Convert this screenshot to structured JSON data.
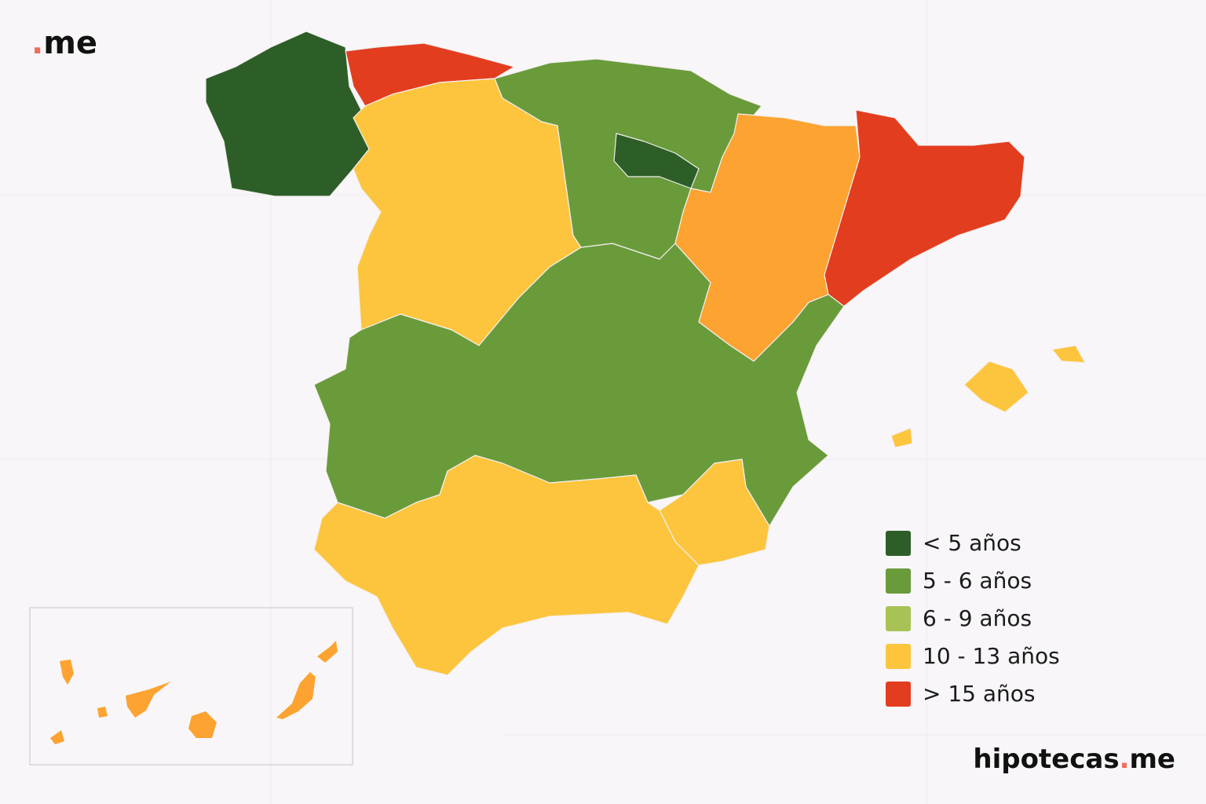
{
  "logo": {
    "dot": ".",
    "word": "me"
  },
  "legend": [
    {
      "label": "< 5 años",
      "color": "#2d5e27"
    },
    {
      "label": "5 - 6 años",
      "color": "#6a9b3a"
    },
    {
      "label": "6 - 9 años",
      "color": "#a8c255"
    },
    {
      "label": "10 - 13 años",
      "color": "#fdc53d"
    },
    {
      "label": "> 15 años",
      "color": "#e33d1f"
    }
  ],
  "brand": {
    "name": "hipotecas",
    "dot": ".",
    "tld": "me"
  }
}
